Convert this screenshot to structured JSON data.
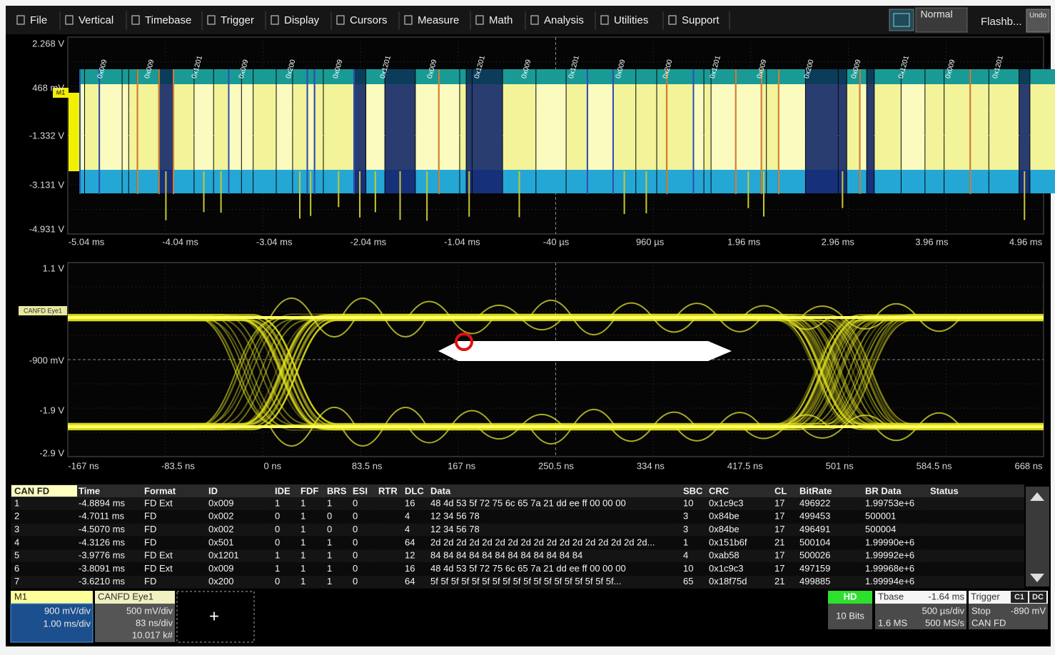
{
  "menu": [
    "File",
    "Vertical",
    "Timebase",
    "Trigger",
    "Display",
    "Cursors",
    "Measure",
    "Math",
    "Analysis",
    "Utilities",
    "Support"
  ],
  "top_right": {
    "mode": "Normal",
    "flashback": "Flashb...",
    "undo": "Undo"
  },
  "upper_grid": {
    "marker": "M1",
    "y_labels": [
      "2.268 V",
      "468 mV",
      "-1.332 V",
      "-3.131 V",
      "-4.931 V"
    ],
    "x_labels": [
      "-5.04 ms",
      "-4.04 ms",
      "-3.04 ms",
      "-2.04 ms",
      "-1.04 ms",
      "-40 µs",
      "960 µs",
      "1.96 ms",
      "2.96 ms",
      "3.96 ms",
      "4.96 ms"
    ],
    "decode_labels": [
      "0x009",
      "0x009",
      "0x1201",
      "0x009",
      "0x200",
      "0x009",
      "0x1201",
      "0x009",
      "0x1201",
      "0x009",
      "0x1201",
      "0x009",
      "0x200",
      "0x1201",
      "0x009",
      "0x200",
      "0x009",
      "0x1201",
      "0x009",
      "0x1201"
    ]
  },
  "eye_grid": {
    "trace_label": "CANFD Eye1",
    "y_labels": [
      "1.1 V",
      "-900 mV",
      "-1.9 V",
      "-2.9 V"
    ],
    "x_labels": [
      "-167 ns",
      "-83.5 ns",
      "0 ns",
      "83.5 ns",
      "167 ns",
      "250.5 ns",
      "334 ns",
      "417.5 ns",
      "501 ns",
      "584.5 ns",
      "668 ns"
    ]
  },
  "table": {
    "columns": [
      "CAN FD",
      "Time",
      "Format",
      "ID",
      "IDE",
      "FDF",
      "BRS",
      "ESI",
      "RTR",
      "DLC",
      "Data",
      "SBC",
      "CRC",
      "CL",
      "BitRate",
      "BR Data",
      "Status"
    ],
    "rows": [
      [
        "1",
        "-4.8894 ms",
        "FD Ext",
        "0x009",
        "1",
        "1",
        "1",
        "0",
        null,
        "16",
        "48 4d 53 5f 72 75 6c 65 7a 21 dd ee ff 00 00 00",
        "10",
        "0x1c9c3",
        "17",
        "496922",
        "1.99753e+6",
        null
      ],
      [
        "2",
        "-4.7011 ms",
        "FD",
        "0x002",
        "0",
        "1",
        "0",
        "0",
        null,
        "4",
        "12 34 56 78",
        "3",
        "0x84be",
        "17",
        "499453",
        "500001",
        null
      ],
      [
        "3",
        "-4.5070 ms",
        "FD",
        "0x002",
        "0",
        "1",
        "0",
        "0",
        null,
        "4",
        "12 34 56 78",
        "3",
        "0x84be",
        "17",
        "496491",
        "500004",
        null
      ],
      [
        "4",
        "-4.3126 ms",
        "FD",
        "0x501",
        "0",
        "1",
        "1",
        "0",
        null,
        "64",
        "2d 2d 2d 2d 2d 2d 2d 2d 2d 2d 2d 2d 2d 2d 2d 2d 2d...",
        "1",
        "0x151b6f",
        "21",
        "500104",
        "1.99990e+6",
        null
      ],
      [
        "5",
        "-3.9776 ms",
        "FD Ext",
        "0x1201",
        "1",
        "1",
        "1",
        "0",
        null,
        "12",
        "84 84 84 84 84 84 84 84 84 84 84 84",
        "4",
        "0xab58",
        "17",
        "500026",
        "1.99992e+6",
        null
      ],
      [
        "6",
        "-3.8091 ms",
        "FD Ext",
        "0x009",
        "1",
        "1",
        "1",
        "0",
        null,
        "16",
        "48 4d 53 5f 72 75 6c 65 7a 21 dd ee ff 00 00 00",
        "10",
        "0x1c9c3",
        "17",
        "497159",
        "1.99968e+6",
        null
      ],
      [
        "7",
        "-3.6210 ms",
        "FD",
        "0x200",
        "0",
        "1",
        "1",
        "0",
        null,
        "64",
        "5f 5f 5f 5f 5f 5f 5f 5f 5f 5f 5f 5f 5f 5f 5f 5f 5f 5f...",
        "65",
        "0x18f75d",
        "21",
        "499885",
        "1.99994e+6",
        null
      ]
    ]
  },
  "descriptors": {
    "m1": {
      "name": "M1",
      "lines": [
        "900 mV/div",
        "1.00 ms/div"
      ]
    },
    "eye": {
      "name": "CANFD Eye1",
      "lines": [
        "500 mV/div",
        "83 ns/div",
        "10.017 k#"
      ]
    },
    "add": "+"
  },
  "status": {
    "hd": "HD",
    "bits": "10 Bits",
    "tbase": {
      "label": "Tbase",
      "value": "-1.64 ms",
      "per_div": "500 µs/div",
      "samples": "1.6 MS",
      "rate": "500 MS/s"
    },
    "trigger": {
      "label": "Trigger",
      "tags": [
        "C1",
        "DC"
      ],
      "state": "Stop",
      "level": "-890 mV",
      "source": "CAN FD"
    }
  }
}
